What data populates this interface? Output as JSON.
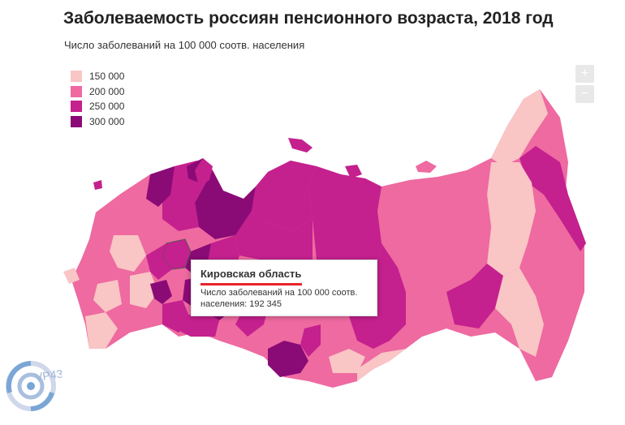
{
  "title": "Заболеваемость россиян пенсионного возраста, 2018 год",
  "subtitle": "Число заболеваний на 100 000 соотв. населения",
  "legend": [
    {
      "label": "150 000",
      "color": "#f9c5c5"
    },
    {
      "label": "200 000",
      "color": "#ee6aa0"
    },
    {
      "label": "250 000",
      "color": "#c4208e"
    },
    {
      "label": "300 000",
      "color": "#8a0b76"
    }
  ],
  "zoom": {
    "in_label": "+",
    "out_label": "−"
  },
  "tooltip": {
    "region": "Кировская область",
    "text": "Число заболеваний на 100 000 соотв. населения: 192 345"
  },
  "logo": {
    "text": "VP43"
  },
  "colors": {
    "light": "#f9c5c5",
    "mid": "#ee6aa0",
    "dark": "#c4208e",
    "darkest": "#8a0b76",
    "tooltip_accent": "#e8232b"
  },
  "icons": {
    "zoom_in": "plus-icon",
    "zoom_out": "minus-icon",
    "logo": "vp43-logo-icon"
  }
}
